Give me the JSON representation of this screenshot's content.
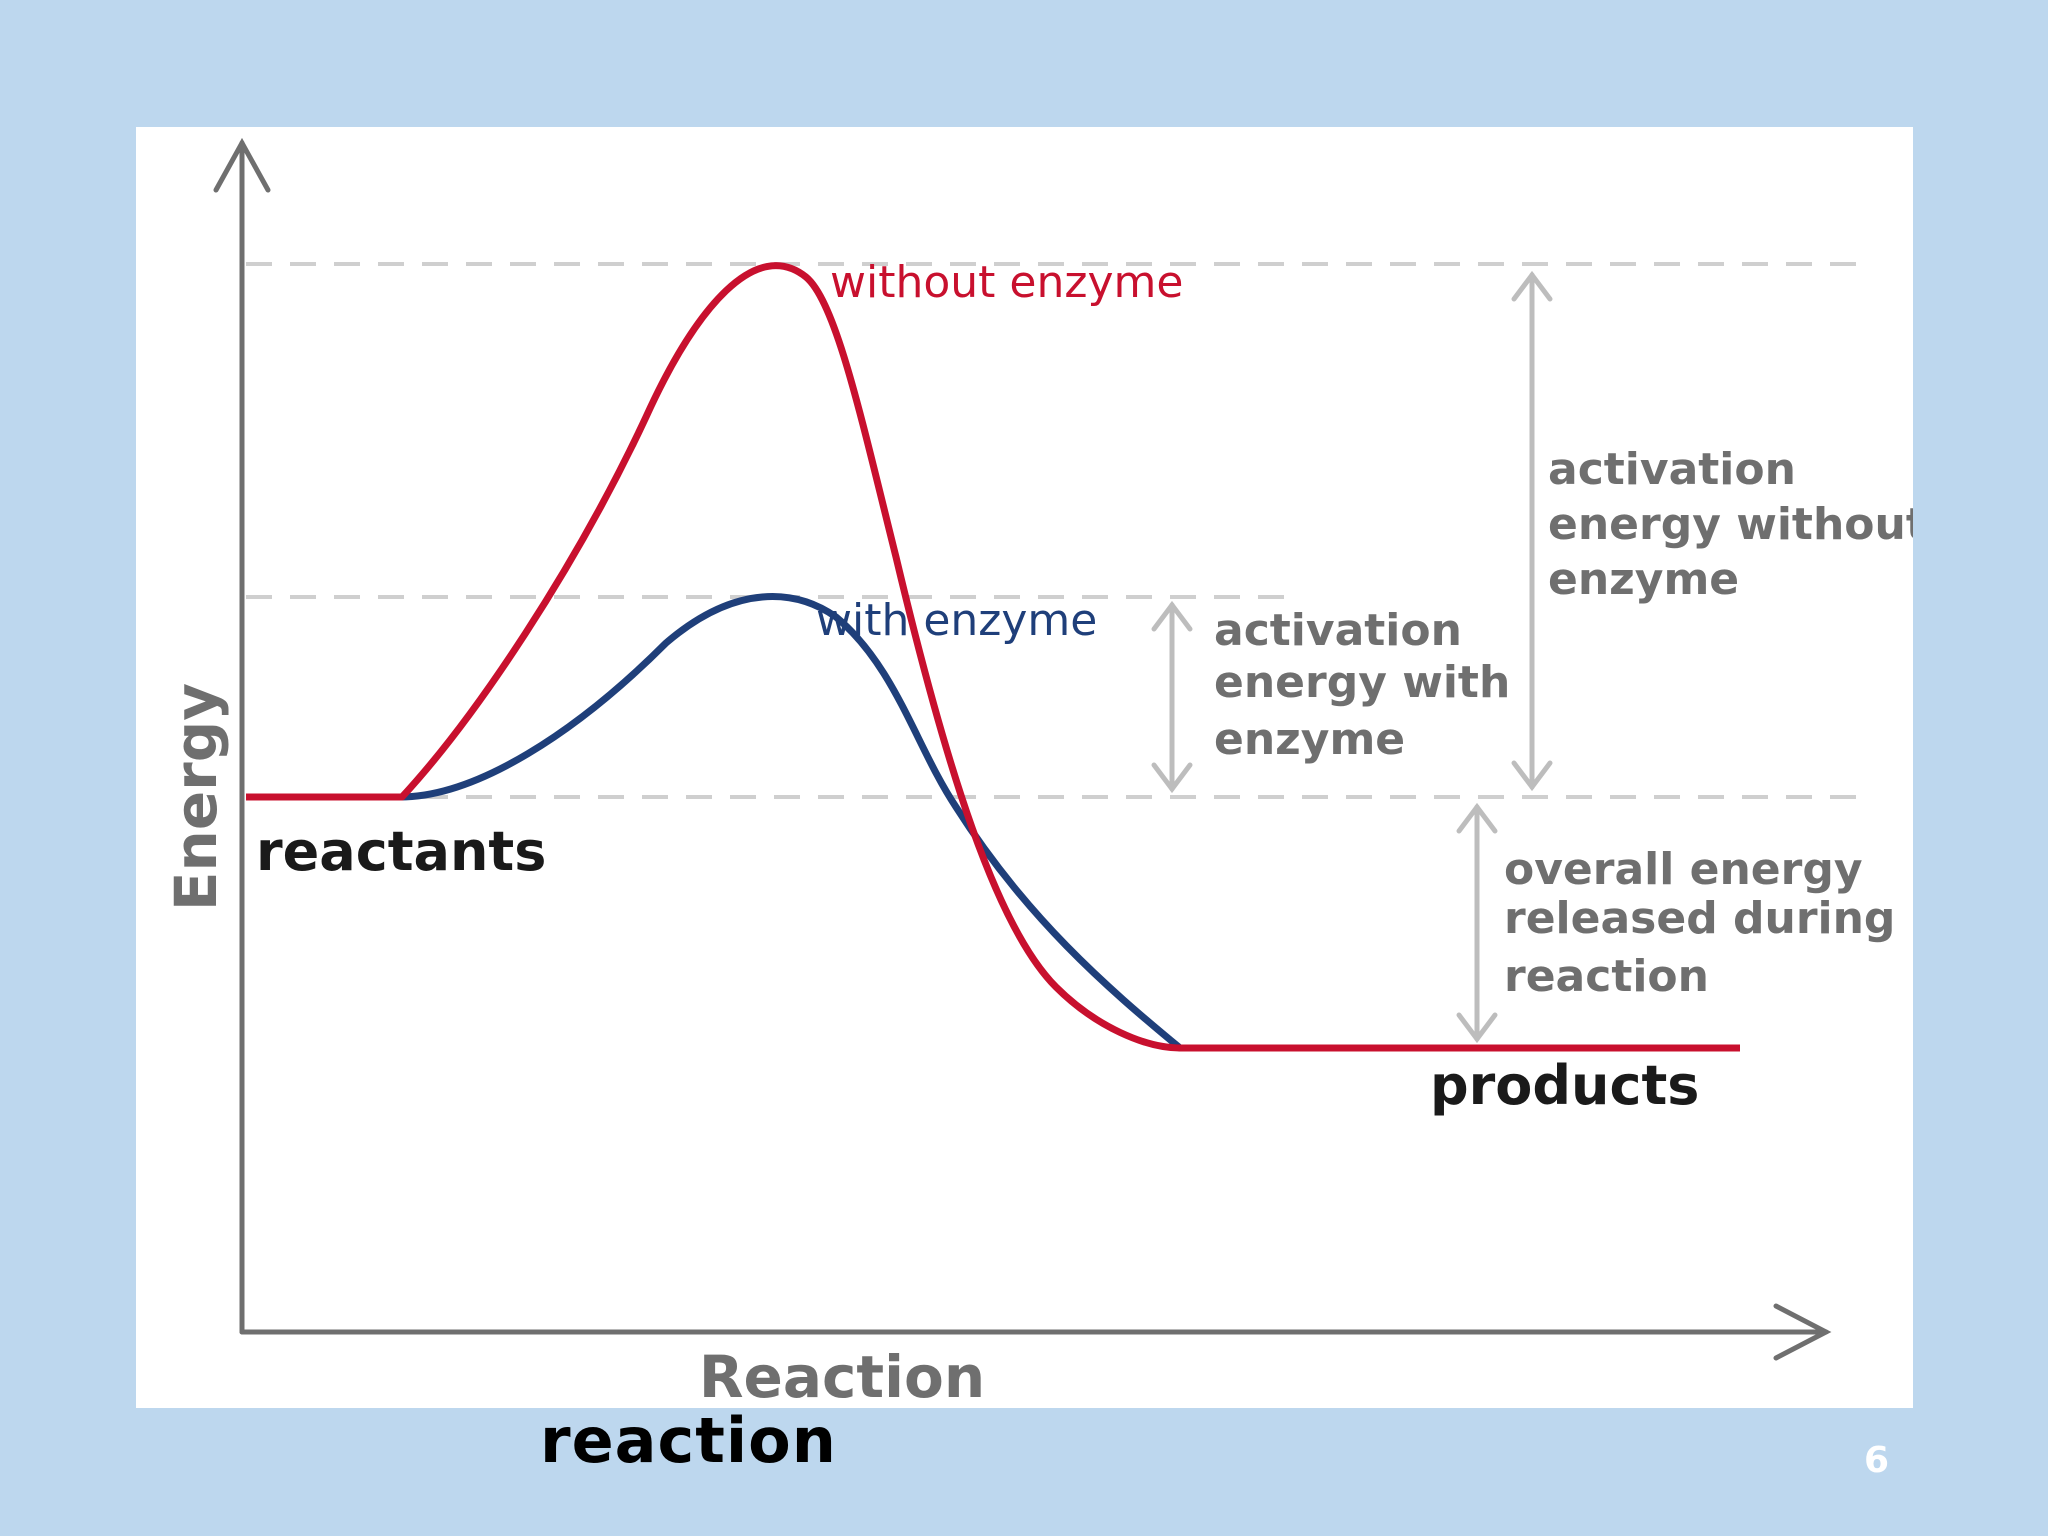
{
  "diagram": {
    "y_axis_label": "Energy",
    "x_axis_label": "Reaction",
    "curves": [
      {
        "label": "without enzyme",
        "color": "#c8102e"
      },
      {
        "label": "with enzyme",
        "color": "#1f3f7a"
      }
    ],
    "states": {
      "reactants": "reactants",
      "products": "products"
    },
    "annotations": {
      "activation_without": [
        "activation",
        "energy without",
        "enzyme"
      ],
      "activation_with": [
        "activation",
        "energy with",
        "enzyme"
      ],
      "overall_energy": [
        "overall energy",
        "released during",
        "reaction"
      ]
    },
    "colors": {
      "background": "#bdd7ee",
      "axis": "#6f6f6f",
      "guide": "#cfcfcf"
    }
  },
  "caption": "reaction",
  "slide_number": "6"
}
